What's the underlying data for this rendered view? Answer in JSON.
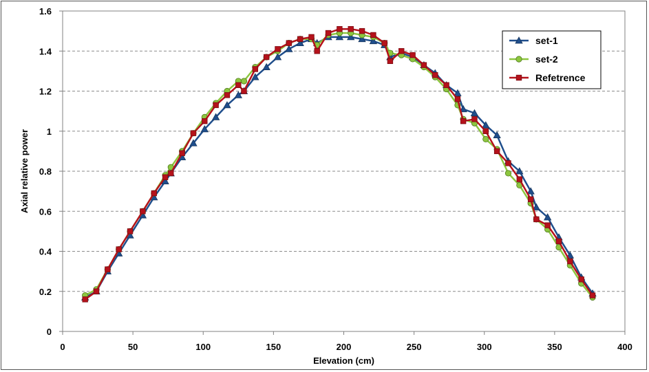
{
  "chart_data": {
    "type": "line",
    "title": "",
    "xlabel": "Elevation (cm)",
    "ylabel": "Axial relative power",
    "xlim": [
      0,
      400
    ],
    "ylim": [
      0,
      1.6
    ],
    "x_ticks": [
      "0",
      "50",
      "100",
      "150",
      "200",
      "250",
      "300",
      "350",
      "400"
    ],
    "y_ticks": [
      "0",
      "0.2",
      "0.4",
      "0.6",
      "0.8",
      "1",
      "1.2",
      "1.4",
      "1.6"
    ],
    "grid": "horizontal-dashed",
    "legend_position": "top-right",
    "series": [
      {
        "name": "set-1",
        "color": "#1F4E8C",
        "marker": "triangle",
        "x": [
          16,
          24,
          32,
          40,
          48,
          57,
          65,
          73,
          77,
          85,
          93,
          101,
          109,
          117,
          125,
          129,
          137,
          145,
          153,
          161,
          169,
          177,
          181,
          189,
          197,
          205,
          213,
          221,
          229,
          233,
          241,
          249,
          257,
          265,
          273,
          281,
          285,
          293,
          301,
          309,
          317,
          325,
          333,
          337,
          345,
          353,
          361,
          369,
          377
        ],
        "y": [
          0.17,
          0.2,
          0.3,
          0.39,
          0.48,
          0.58,
          0.67,
          0.75,
          0.79,
          0.87,
          0.94,
          1.01,
          1.07,
          1.13,
          1.18,
          1.2,
          1.27,
          1.32,
          1.37,
          1.41,
          1.44,
          1.46,
          1.44,
          1.47,
          1.47,
          1.47,
          1.46,
          1.45,
          1.43,
          1.37,
          1.39,
          1.37,
          1.33,
          1.29,
          1.23,
          1.19,
          1.11,
          1.09,
          1.03,
          0.98,
          0.85,
          0.8,
          0.7,
          0.62,
          0.57,
          0.47,
          0.38,
          0.27,
          0.19
        ]
      },
      {
        "name": "set-2",
        "color": "#8DC63F",
        "marker": "circle",
        "x": [
          16,
          24,
          32,
          40,
          48,
          57,
          65,
          73,
          77,
          85,
          93,
          101,
          109,
          117,
          125,
          129,
          137,
          145,
          153,
          161,
          169,
          177,
          181,
          189,
          197,
          205,
          213,
          221,
          229,
          233,
          241,
          249,
          257,
          265,
          273,
          281,
          285,
          293,
          301,
          309,
          317,
          325,
          333,
          337,
          345,
          353,
          361,
          369,
          377
        ],
        "y": [
          0.18,
          0.21,
          0.31,
          0.41,
          0.5,
          0.6,
          0.69,
          0.78,
          0.82,
          0.9,
          0.99,
          1.07,
          1.14,
          1.2,
          1.25,
          1.25,
          1.32,
          1.37,
          1.4,
          1.44,
          1.46,
          1.46,
          1.43,
          1.48,
          1.49,
          1.49,
          1.48,
          1.47,
          1.44,
          1.39,
          1.38,
          1.36,
          1.32,
          1.27,
          1.21,
          1.13,
          1.06,
          1.04,
          0.96,
          0.91,
          0.79,
          0.73,
          0.64,
          0.56,
          0.51,
          0.42,
          0.33,
          0.24,
          0.17
        ]
      },
      {
        "name": "Refetrence",
        "color": "#B5121B",
        "marker": "square",
        "x": [
          16,
          24,
          32,
          40,
          48,
          57,
          65,
          73,
          77,
          85,
          93,
          101,
          109,
          117,
          125,
          129,
          137,
          145,
          153,
          161,
          169,
          177,
          181,
          189,
          197,
          205,
          213,
          221,
          229,
          233,
          241,
          249,
          257,
          265,
          273,
          281,
          285,
          293,
          301,
          309,
          317,
          325,
          333,
          337,
          345,
          353,
          361,
          369,
          377
        ],
        "y": [
          0.16,
          0.2,
          0.31,
          0.41,
          0.5,
          0.6,
          0.69,
          0.77,
          0.79,
          0.89,
          0.99,
          1.05,
          1.13,
          1.18,
          1.23,
          1.2,
          1.31,
          1.37,
          1.41,
          1.44,
          1.46,
          1.47,
          1.4,
          1.49,
          1.51,
          1.51,
          1.5,
          1.48,
          1.44,
          1.35,
          1.4,
          1.38,
          1.33,
          1.28,
          1.23,
          1.16,
          1.05,
          1.06,
          1.0,
          0.9,
          0.84,
          0.76,
          0.66,
          0.56,
          0.53,
          0.45,
          0.35,
          0.26,
          0.18
        ]
      }
    ]
  }
}
